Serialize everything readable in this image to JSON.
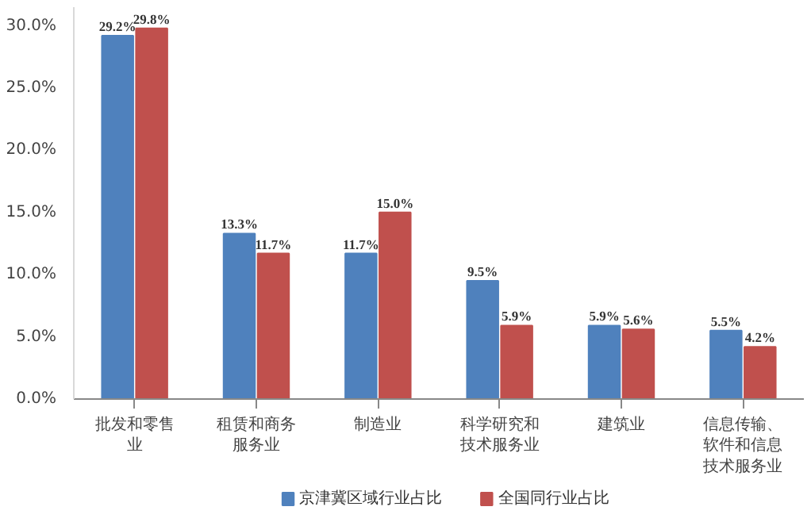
{
  "chart_data": {
    "type": "bar",
    "categories": [
      "批发和零售业",
      "租赁和商务服务业",
      "制造业",
      "科学研究和技术服务业",
      "建筑业",
      "信息传输、软件和信息技术服务业"
    ],
    "series": [
      {
        "name": "京津冀区域行业占比",
        "color": "#4f81bd",
        "values": [
          29.2,
          13.3,
          11.7,
          9.5,
          5.9,
          5.5
        ],
        "value_labels": [
          "29.2%",
          "13.3%",
          "11.7%",
          "9.5%",
          "5.9%",
          "5.5%"
        ]
      },
      {
        "name": "全国同行业占比",
        "color": "#c0504d",
        "values": [
          29.8,
          11.7,
          15.0,
          5.9,
          5.6,
          4.2
        ],
        "value_labels": [
          "29.8%",
          "11.7%",
          "15.0%",
          "5.9%",
          "5.6%",
          "4.2%"
        ]
      }
    ],
    "ylim": [
      0,
      31.5
    ],
    "yticks": [
      {
        "value": 0,
        "label": "0.0%"
      },
      {
        "value": 5,
        "label": "5.0%"
      },
      {
        "value": 10,
        "label": "10.0%"
      },
      {
        "value": 15,
        "label": "15.0%"
      },
      {
        "value": 20,
        "label": "20.0%"
      },
      {
        "value": 25,
        "label": "25.0%"
      },
      {
        "value": 30,
        "label": "30.0%"
      }
    ],
    "grid": false,
    "legend": "bottom"
  }
}
